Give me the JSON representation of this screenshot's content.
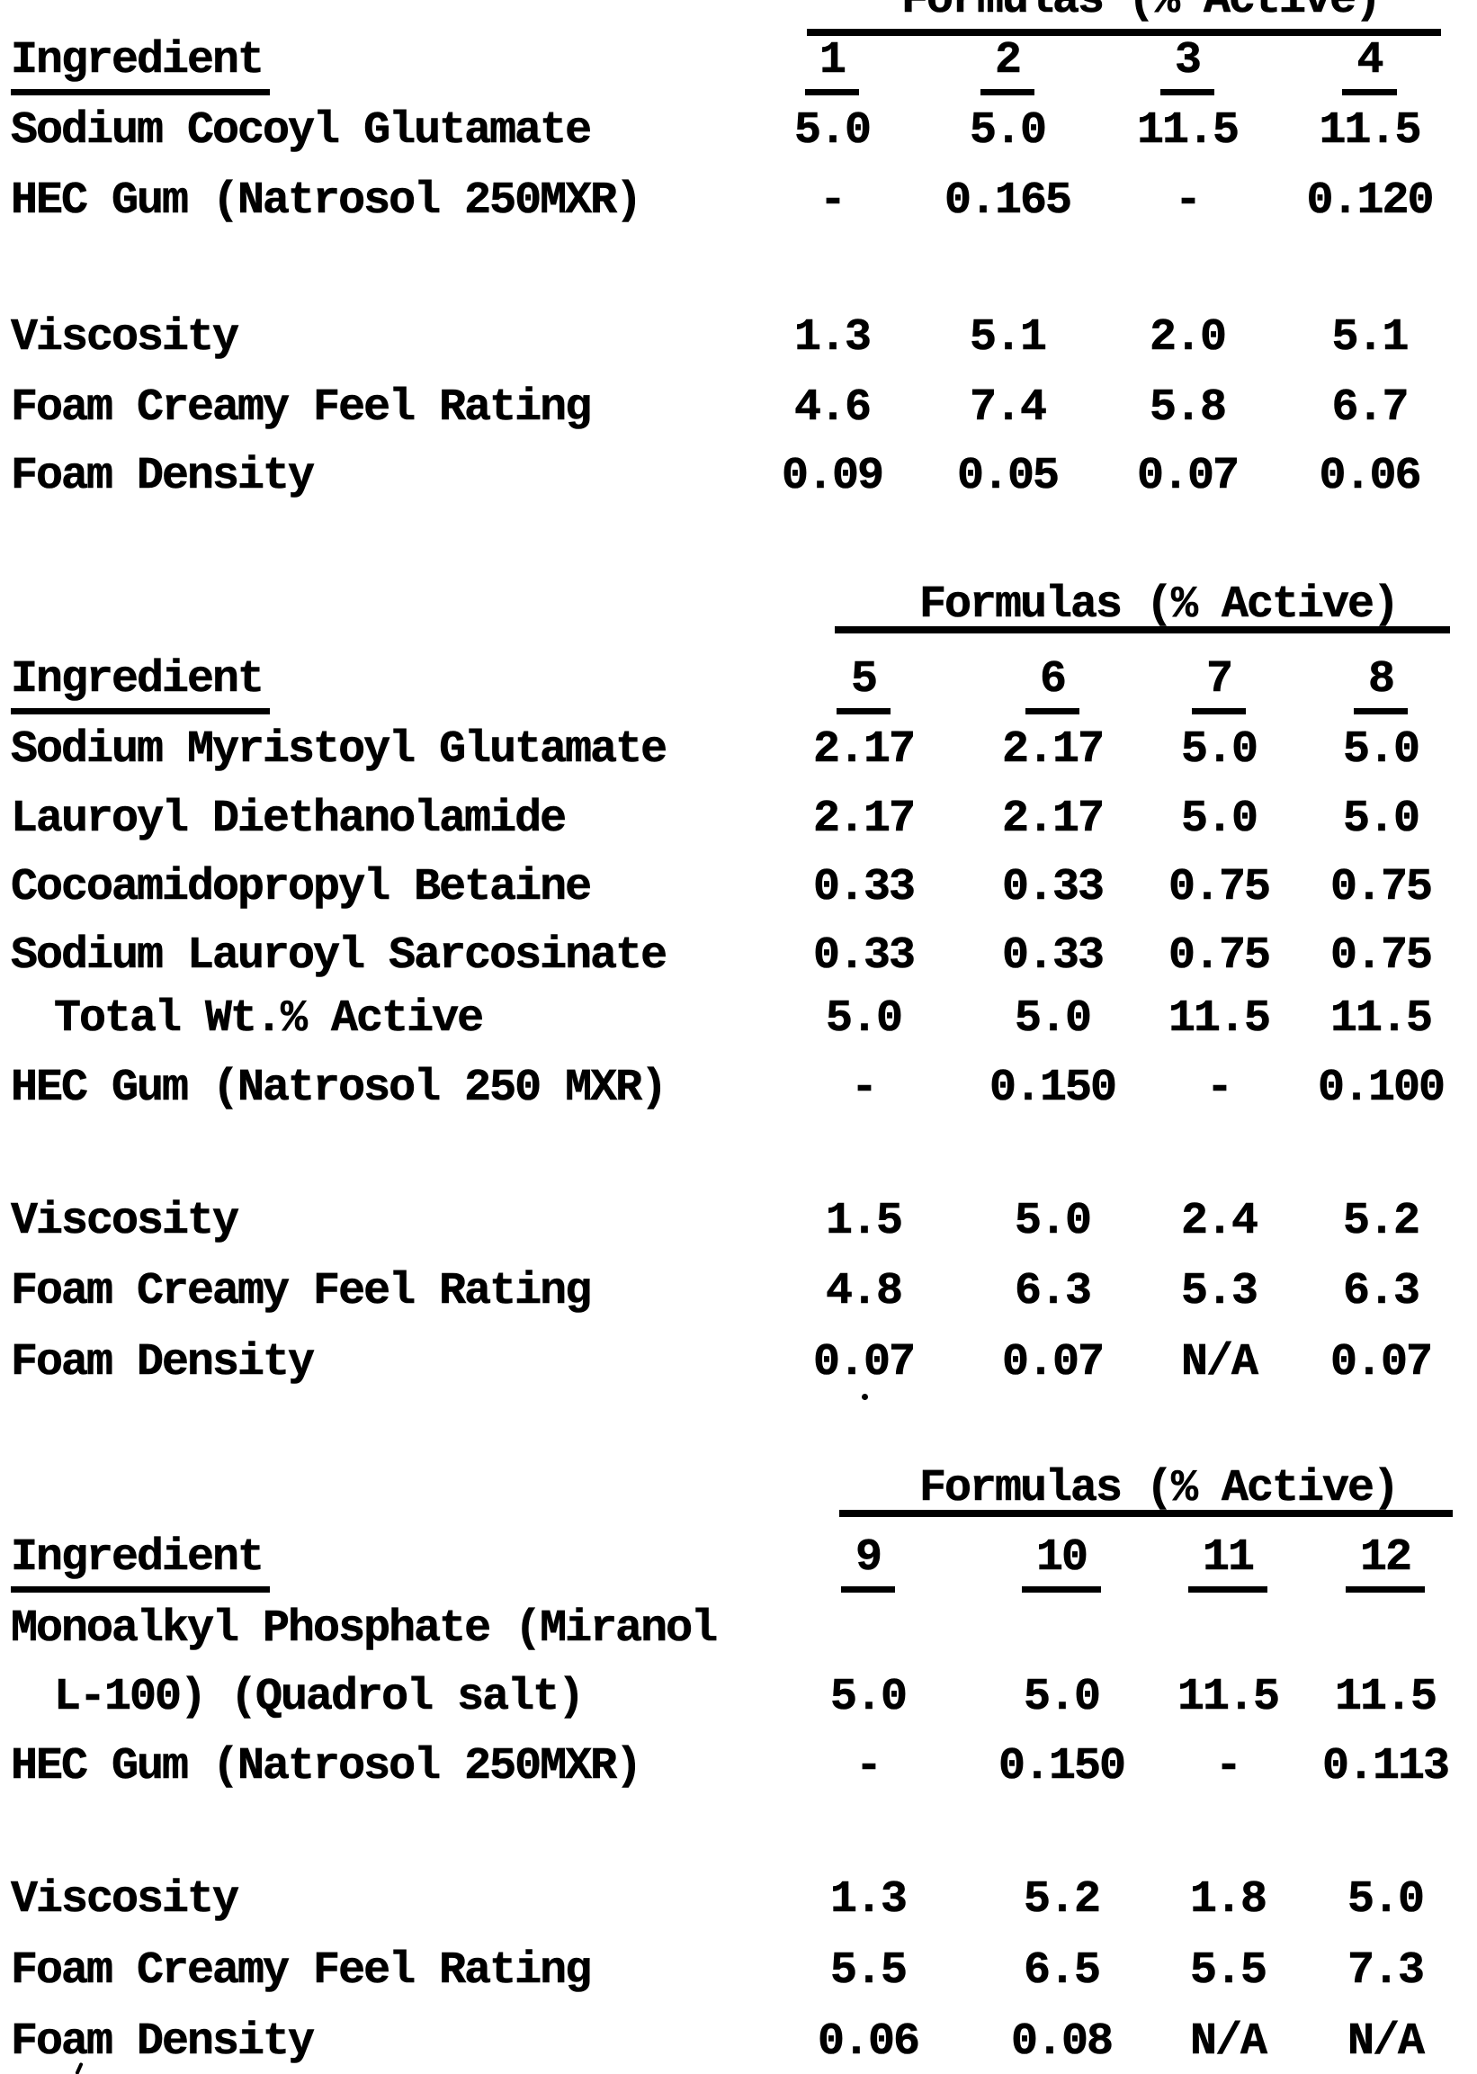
{
  "document": {
    "kind": "scanned typewriter table page",
    "ink_color": "#000000",
    "paper_color": "#ffffff"
  },
  "tables": [
    {
      "section_header": "Formulas (% Active)",
      "header_clipped_at_top": true,
      "ingredient_column_label": "Ingredient",
      "formula_columns": [
        "1",
        "2",
        "3",
        "4"
      ],
      "rows": [
        {
          "label": "Sodium Cocoyl Glutamate",
          "values": [
            "5.0",
            "5.0",
            "11.5",
            "11.5"
          ]
        },
        {
          "label": "HEC Gum (Natrosol 250MXR)",
          "values": [
            "-",
            "0.165",
            "-",
            "0.120"
          ]
        },
        {
          "label": "Viscosity",
          "values": [
            "1.3",
            "5.1",
            "2.0",
            "5.1"
          ]
        },
        {
          "label": "Foam Creamy Feel Rating",
          "values": [
            "4.6",
            "7.4",
            "5.8",
            "6.7"
          ]
        },
        {
          "label": "Foam Density",
          "values": [
            "0.09",
            "0.05",
            "0.07",
            "0.06"
          ]
        }
      ]
    },
    {
      "section_header": "Formulas (% Active)",
      "header_clipped_at_top": false,
      "ingredient_column_label": "Ingredient",
      "formula_columns": [
        "5",
        "6",
        "7",
        "8"
      ],
      "rows": [
        {
          "label": "Sodium Myristoyl Glutamate",
          "values": [
            "2.17",
            "2.17",
            "5.0",
            "5.0"
          ]
        },
        {
          "label": "Lauroyl Diethanolamide",
          "values": [
            "2.17",
            "2.17",
            "5.0",
            "5.0"
          ]
        },
        {
          "label": "Cocoamidopropyl Betaine",
          "values": [
            "0.33",
            "0.33",
            "0.75",
            "0.75"
          ]
        },
        {
          "label": "Sodium Lauroyl Sarcosinate",
          "values": [
            "0.33",
            "0.33",
            "0.75",
            "0.75"
          ]
        },
        {
          "label": "Total Wt.% Active",
          "indent": true,
          "values": [
            "5.0",
            "5.0",
            "11.5",
            "11.5"
          ]
        },
        {
          "label": "HEC Gum (Natrosol 250 MXR)",
          "values": [
            "-",
            "0.150",
            "-",
            "0.100"
          ]
        },
        {
          "label": "Viscosity",
          "values": [
            "1.5",
            "5.0",
            "2.4",
            "5.2"
          ]
        },
        {
          "label": "Foam Creamy Feel Rating",
          "values": [
            "4.8",
            "6.3",
            "5.3",
            "6.3"
          ]
        },
        {
          "label": "Foam Density",
          "values": [
            "0.07",
            "0.07",
            "N/A",
            "0.07"
          ]
        }
      ]
    },
    {
      "section_header": "Formulas (% Active)",
      "header_clipped_at_top": false,
      "ingredient_column_label": "Ingredient",
      "formula_columns": [
        "9",
        "10",
        "11",
        "12"
      ],
      "rows": [
        {
          "label": "Monoalkyl Phosphate (Miranol",
          "values": [
            "",
            "",
            "",
            ""
          ]
        },
        {
          "label": "L-100) (Quadrol salt)",
          "indent": true,
          "values": [
            "5.0",
            "5.0",
            "11.5",
            "11.5"
          ]
        },
        {
          "label": "HEC Gum (Natrosol 250MXR)",
          "values": [
            "-",
            "0.150",
            "-",
            "0.113"
          ]
        },
        {
          "label": "Viscosity",
          "values": [
            "1.3",
            "5.2",
            "1.8",
            "5.0"
          ]
        },
        {
          "label": "Foam Creamy Feel Rating",
          "values": [
            "5.5",
            "6.5",
            "5.5",
            "7.3"
          ]
        },
        {
          "label": "Foam Density",
          "values": [
            "0.06",
            "0.08",
            "N/A",
            "N/A"
          ]
        }
      ]
    }
  ]
}
